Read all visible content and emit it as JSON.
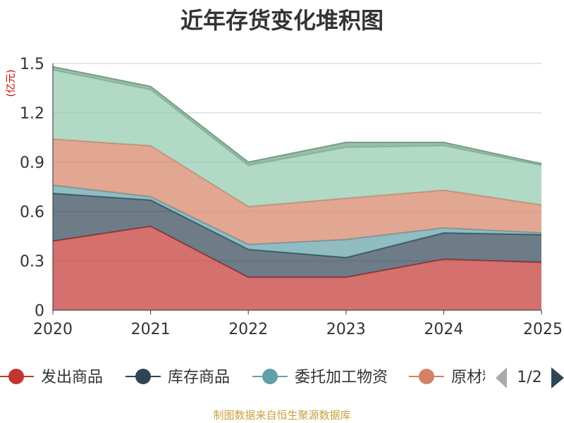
{
  "title": "近年存货变化堆积图",
  "source": "制图数据来自恒生聚源数据库",
  "chart_data": {
    "type": "area",
    "stacked": true,
    "unit": "(亿元)",
    "x": [
      "2020",
      "2021",
      "2022",
      "2023",
      "2024",
      "2025"
    ],
    "ylim": [
      0,
      1.5
    ],
    "yticks": [
      "0",
      "0.3",
      "0.6",
      "0.9",
      "1.2",
      "1.5"
    ],
    "grid": true,
    "series": [
      {
        "name": "发出商品",
        "color": "#c23531",
        "values": [
          0.42,
          0.51,
          0.2,
          0.2,
          0.31,
          0.29
        ]
      },
      {
        "name": "库存商品",
        "color": "#2f4554",
        "values": [
          0.29,
          0.16,
          0.17,
          0.12,
          0.16,
          0.17
        ]
      },
      {
        "name": "委托加工物资",
        "color": "#61a0a8",
        "values": [
          0.05,
          0.02,
          0.03,
          0.11,
          0.03,
          0.01
        ]
      },
      {
        "name": "原材料",
        "color": "#d48265",
        "values": [
          0.28,
          0.31,
          0.23,
          0.25,
          0.23,
          0.17
        ]
      },
      {
        "color": "#91c7ae",
        "values": [
          0.42,
          0.34,
          0.25,
          0.31,
          0.27,
          0.24
        ]
      },
      {
        "color": "#749f83",
        "values": [
          0.02,
          0.02,
          0.02,
          0.03,
          0.02,
          0.01
        ]
      }
    ],
    "legend": {
      "position": "bottom",
      "page": "1/2"
    }
  }
}
